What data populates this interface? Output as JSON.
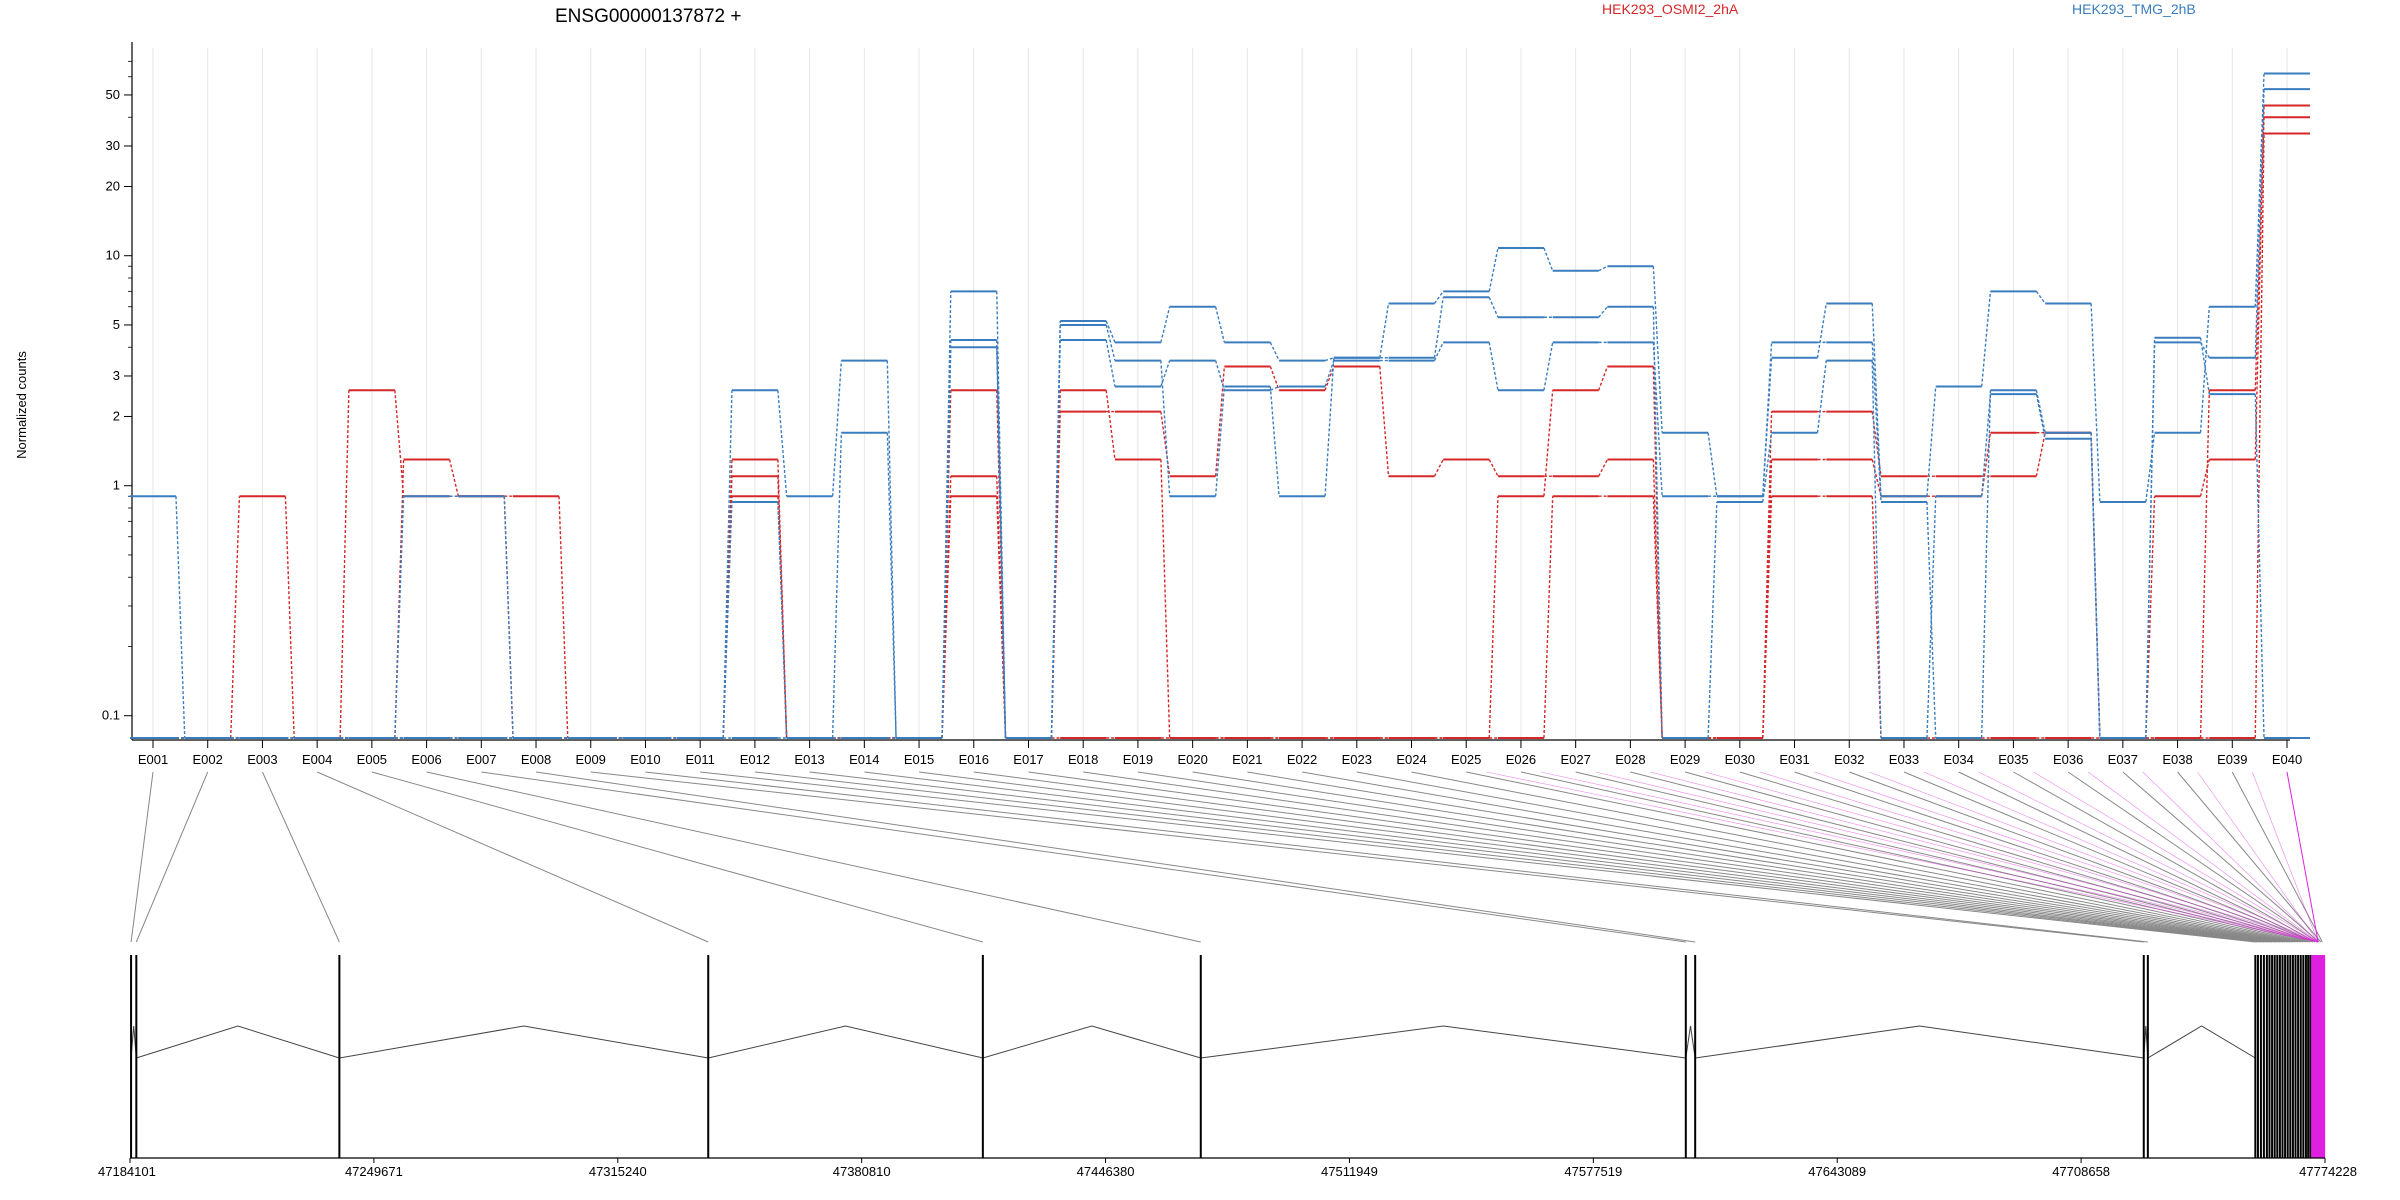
{
  "chart_data": {
    "type": "line",
    "title": "ENSG00000137872 +",
    "ylabel": "Normalized counts",
    "yscale": "log",
    "ylim": [
      0.08,
      80
    ],
    "yticks": [
      0.1,
      1,
      2,
      3,
      5,
      10,
      20,
      30,
      50
    ],
    "ytick_labels": [
      "0.1",
      "1",
      "2",
      "3",
      "5",
      "10",
      "20",
      "30",
      "50"
    ],
    "grid": true,
    "legend_position": "top",
    "categories": [
      "E001",
      "E002",
      "E003",
      "E004",
      "E005",
      "E006",
      "E007",
      "E008",
      "E009",
      "E010",
      "E011",
      "E012",
      "E013",
      "E014",
      "E015",
      "E016",
      "E017",
      "E018",
      "E019",
      "E020",
      "E021",
      "E022",
      "E023",
      "E024",
      "E025",
      "E026",
      "E027",
      "E028",
      "E029",
      "E030",
      "E031",
      "E032",
      "E033",
      "E034",
      "E035",
      "E036",
      "E037",
      "E038",
      "E039",
      "E040"
    ],
    "legend": [
      {
        "name": "HEK293_OSMI2_2hA",
        "color": "#d62728"
      },
      {
        "name": "HEK293_TMG_2hB",
        "color": "#3a7dbf"
      }
    ],
    "series": [
      {
        "group": "HEK293_OSMI2_2hA",
        "color": "#d62728",
        "values": [
          0.08,
          0.08,
          0.9,
          0.08,
          2.6,
          0.9,
          0.9,
          0.9,
          0.08,
          0.08,
          0.08,
          1.3,
          0.08,
          0.08,
          0.08,
          2.6,
          0.08,
          2.1,
          2.1,
          1.1,
          3.3,
          2.6,
          3.3,
          1.1,
          1.3,
          1.1,
          1.1,
          1.3,
          0.08,
          0.08,
          2.1,
          2.1,
          1.1,
          1.1,
          1.1,
          1.7,
          0.08,
          0.9,
          1.3,
          45
        ]
      },
      {
        "group": "HEK293_OSMI2_2hA",
        "color": "#d62728",
        "values": [
          0.08,
          0.08,
          0.08,
          0.08,
          0.08,
          1.3,
          0.9,
          0.08,
          0.08,
          0.08,
          0.08,
          1.1,
          0.08,
          0.08,
          0.08,
          1.1,
          0.08,
          2.6,
          1.3,
          0.08,
          0.08,
          0.08,
          0.08,
          0.08,
          0.08,
          0.9,
          2.6,
          3.3,
          0.08,
          0.08,
          1.3,
          1.3,
          0.9,
          0.9,
          1.7,
          1.7,
          0.08,
          0.08,
          2.6,
          40
        ]
      },
      {
        "group": "HEK293_OSMI2_2hA",
        "color": "#d62728",
        "values": [
          0.08,
          0.08,
          0.08,
          0.08,
          0.08,
          0.08,
          0.08,
          0.08,
          0.08,
          0.08,
          0.08,
          0.9,
          0.08,
          0.08,
          0.08,
          0.9,
          0.08,
          0.08,
          0.08,
          0.08,
          0.08,
          0.08,
          0.08,
          0.08,
          0.08,
          0.08,
          0.9,
          0.9,
          0.08,
          0.08,
          0.9,
          0.9,
          0.08,
          0.08,
          0.08,
          0.08,
          0.08,
          0.08,
          0.08,
          34
        ]
      },
      {
        "group": "HEK293_TMG_2hB",
        "color": "#3a7dbf",
        "values": [
          0.9,
          0.08,
          0.08,
          0.08,
          0.08,
          0.9,
          0.9,
          0.08,
          0.08,
          0.08,
          0.08,
          2.6,
          0.9,
          3.5,
          0.08,
          7.0,
          0.08,
          5.2,
          4.2,
          6.0,
          4.2,
          3.5,
          3.6,
          6.2,
          7.0,
          10.8,
          8.6,
          9.0,
          1.7,
          0.9,
          3.6,
          6.2,
          0.9,
          2.7,
          7.0,
          6.2,
          0.85,
          1.7,
          6.0,
          62
        ]
      },
      {
        "group": "HEK293_TMG_2hB",
        "color": "#3a7dbf",
        "values": [
          0.08,
          0.08,
          0.08,
          0.08,
          0.08,
          0.08,
          0.08,
          0.08,
          0.08,
          0.08,
          0.08,
          0.85,
          0.08,
          1.7,
          0.08,
          4.3,
          0.08,
          4.3,
          2.7,
          3.5,
          2.6,
          2.7,
          3.5,
          3.5,
          4.2,
          2.6,
          4.2,
          4.2,
          0.9,
          0.9,
          4.2,
          4.2,
          0.85,
          0.08,
          2.6,
          1.7,
          0.08,
          4.2,
          3.6,
          53
        ]
      },
      {
        "group": "HEK293_TMG_2hB",
        "color": "#3a7dbf",
        "values": [
          0.08,
          0.08,
          0.08,
          0.08,
          0.08,
          0.08,
          0.08,
          0.08,
          0.08,
          0.08,
          0.08,
          0.08,
          0.08,
          0.08,
          0.08,
          4.0,
          0.08,
          5.0,
          3.5,
          0.9,
          2.7,
          0.9,
          3.6,
          3.6,
          6.6,
          5.4,
          5.4,
          6.0,
          0.08,
          0.85,
          1.7,
          3.5,
          0.08,
          0.9,
          2.5,
          1.6,
          0.08,
          4.4,
          2.5,
          0.08
        ]
      }
    ]
  },
  "gene_model": {
    "coordinate_labels": [
      "47184101",
      "47249671",
      "47315240",
      "47380810",
      "47446380",
      "47511949",
      "47577519",
      "47643089",
      "47708658",
      "47774228"
    ],
    "coord_min": 47184101,
    "coord_max": 47774228,
    "exon_starts": [
      47184390,
      47185800,
      47240390,
      47339560,
      47413390,
      47471980,
      47602380,
      47604900,
      47725500,
      47726600,
      47755500,
      47756200,
      47757000,
      47757800,
      47758600,
      47759300,
      47760000,
      47760700,
      47761400,
      47762100,
      47762800,
      47763500,
      47764200,
      47764900,
      47765600,
      47766300,
      47767000,
      47767700,
      47768400,
      47769100,
      47769700,
      47770300,
      47770900,
      47771500,
      47772100,
      47772600,
      47773100,
      47773500,
      47773900,
      47771000
    ],
    "highlighted_exon": "E040",
    "highlight_color": "#e020e0",
    "highlight_range": [
      47770500,
      47774228
    ]
  }
}
